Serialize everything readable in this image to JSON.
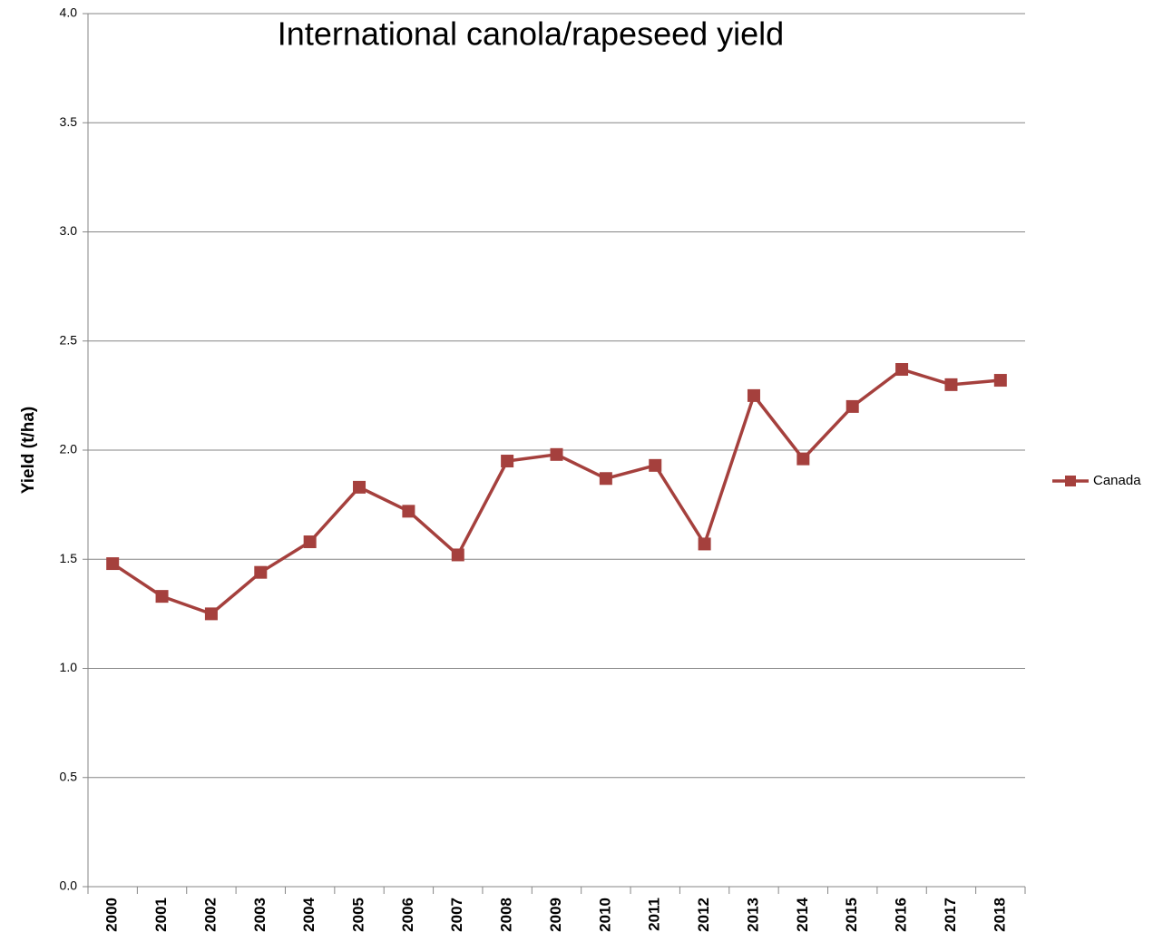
{
  "chart_data": {
    "type": "line",
    "title": "International canola/rapeseed yield",
    "y_label": "Yield (t/ha)",
    "categories": [
      "2000",
      "2001",
      "2002",
      "2003",
      "2004",
      "2005",
      "2006",
      "2007",
      "2008",
      "2009",
      "2010",
      "2011",
      "2012",
      "2013",
      "2014",
      "2015",
      "2016",
      "2017",
      "2018"
    ],
    "series": [
      {
        "name": "Canada",
        "color": "#a5403d",
        "values": [
          1.48,
          1.33,
          1.25,
          1.44,
          1.58,
          1.83,
          1.72,
          1.52,
          1.95,
          1.98,
          1.87,
          1.93,
          1.57,
          2.25,
          1.96,
          2.2,
          2.37,
          2.3,
          2.32
        ]
      }
    ],
    "ylim": [
      0,
      4
    ],
    "yticks": [
      {
        "value": 0,
        "label": "0.0"
      },
      0.5,
      {
        "value": 1,
        "label": "1.0"
      },
      1.5,
      {
        "value": 2,
        "label": "2.0"
      },
      2.5,
      {
        "value": 3,
        "label": "3.0"
      },
      3.5,
      {
        "value": 4,
        "label": "4.0"
      }
    ],
    "grid": true,
    "legend": "right"
  }
}
